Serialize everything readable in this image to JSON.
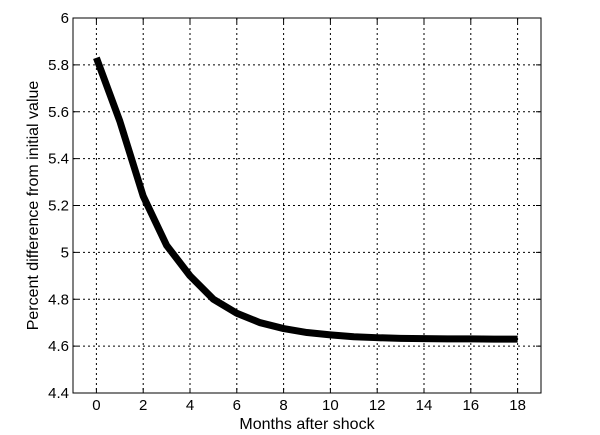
{
  "chart_data": {
    "type": "line",
    "title": "",
    "xlabel": "Months after shock",
    "ylabel": "Percent difference from initial value",
    "xlim": [
      -1,
      19
    ],
    "ylim": [
      4.4,
      6.0
    ],
    "x_ticks": [
      0,
      2,
      4,
      6,
      8,
      10,
      12,
      14,
      16,
      18
    ],
    "y_ticks": [
      "4.4",
      "4.6",
      "4.8",
      "5",
      "5.2",
      "5.4",
      "5.6",
      "5.8",
      "6"
    ],
    "grid": true,
    "legend": "none",
    "line_color": "#000000",
    "series": [
      {
        "x": [
          0,
          1,
          2,
          3,
          4,
          5,
          6,
          7,
          8,
          9,
          10,
          11,
          12,
          13,
          14,
          15,
          16,
          17,
          18
        ],
        "values": [
          5.83,
          5.56,
          5.24,
          5.03,
          4.9,
          4.8,
          4.74,
          4.7,
          4.675,
          4.658,
          4.648,
          4.64,
          4.636,
          4.633,
          4.632,
          4.631,
          4.631,
          4.63,
          4.63
        ]
      }
    ]
  }
}
